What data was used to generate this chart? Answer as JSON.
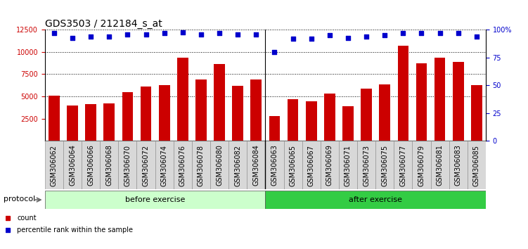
{
  "title": "GDS3503 / 212184_s_at",
  "categories": [
    "GSM306062",
    "GSM306064",
    "GSM306066",
    "GSM306068",
    "GSM306070",
    "GSM306072",
    "GSM306074",
    "GSM306076",
    "GSM306078",
    "GSM306080",
    "GSM306082",
    "GSM306084",
    "GSM306063",
    "GSM306065",
    "GSM306067",
    "GSM306069",
    "GSM306071",
    "GSM306073",
    "GSM306075",
    "GSM306077",
    "GSM306079",
    "GSM306081",
    "GSM306083",
    "GSM306085"
  ],
  "bar_values": [
    5100,
    3950,
    4150,
    4200,
    5500,
    6150,
    6250,
    9400,
    6900,
    8650,
    6200,
    6900,
    2750,
    4700,
    4450,
    5300,
    3900,
    5900,
    6350,
    10700,
    8750,
    9400,
    8850,
    6250
  ],
  "percentile_values": [
    97,
    93,
    94,
    94,
    96,
    96,
    97,
    98,
    96,
    97,
    96,
    96,
    80,
    92,
    92,
    95,
    93,
    94,
    95,
    97,
    97,
    97,
    97,
    94
  ],
  "bar_color": "#cc0000",
  "dot_color": "#0000cc",
  "ylim_left": [
    0,
    12500
  ],
  "ylim_right": [
    0,
    100
  ],
  "yticks_left": [
    2500,
    5000,
    7500,
    10000,
    12500
  ],
  "yticks_right": [
    0,
    25,
    50,
    75,
    100
  ],
  "grid_values": [
    5000,
    7500,
    10000
  ],
  "before_exercise_count": 12,
  "after_exercise_count": 12,
  "protocol_label": "protocol",
  "before_label": "before exercise",
  "after_label": "after exercise",
  "legend_count_label": "count",
  "legend_percentile_label": "percentile rank within the sample",
  "before_color": "#ccffcc",
  "after_color": "#33cc44",
  "bg_color": "#ffffff",
  "title_fontsize": 10,
  "tick_fontsize": 7,
  "label_fontsize": 8
}
